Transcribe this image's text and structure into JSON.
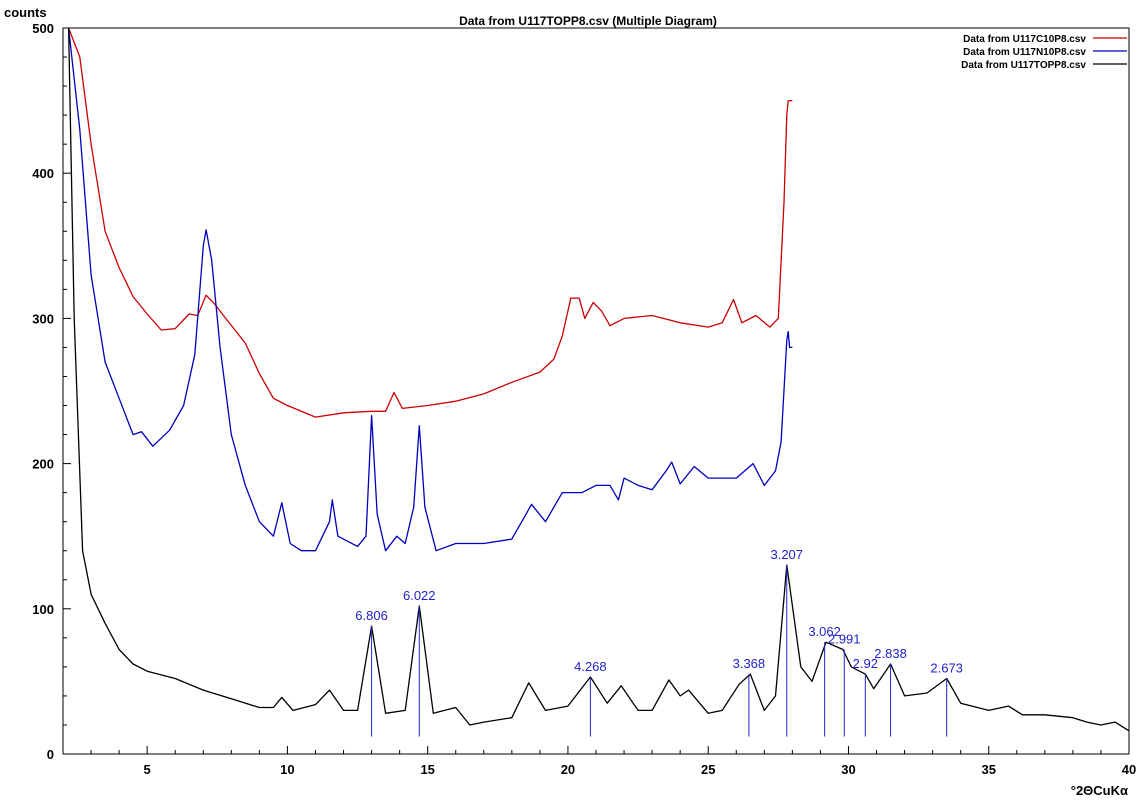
{
  "chart_data": {
    "type": "line",
    "title": "Data from U117TOPP8.csv (Multiple Diagram)",
    "ylabel": "counts",
    "xlabel": "°2ΘCuKα",
    "xlim": [
      2,
      40
    ],
    "ylim": [
      0,
      500
    ],
    "x_ticks": [
      5,
      10,
      15,
      20,
      25,
      30,
      35,
      40
    ],
    "y_ticks": [
      0,
      100,
      200,
      300,
      400,
      500
    ],
    "grid": false,
    "legend_position": "top-right",
    "series": [
      {
        "name": "Data from U117C10P8.csv",
        "color": "#cc0000",
        "points": [
          [
            2.2,
            500
          ],
          [
            2.6,
            480
          ],
          [
            3.0,
            420
          ],
          [
            3.5,
            360
          ],
          [
            4.0,
            335
          ],
          [
            4.5,
            315
          ],
          [
            5.0,
            303
          ],
          [
            5.5,
            292
          ],
          [
            6.0,
            293
          ],
          [
            6.5,
            303
          ],
          [
            6.8,
            302
          ],
          [
            7.1,
            316
          ],
          [
            7.4,
            310
          ],
          [
            7.8,
            300
          ],
          [
            8.5,
            283
          ],
          [
            9.0,
            262
          ],
          [
            9.5,
            245
          ],
          [
            10.0,
            240
          ],
          [
            11.0,
            232
          ],
          [
            12.0,
            235
          ],
          [
            13.0,
            236
          ],
          [
            13.5,
            236
          ],
          [
            13.8,
            249
          ],
          [
            14.1,
            238
          ],
          [
            15.0,
            240
          ],
          [
            16.0,
            243
          ],
          [
            17.0,
            248
          ],
          [
            18.0,
            256
          ],
          [
            19.0,
            263
          ],
          [
            19.5,
            272
          ],
          [
            19.8,
            288
          ],
          [
            20.1,
            314
          ],
          [
            20.4,
            314
          ],
          [
            20.6,
            300
          ],
          [
            20.9,
            311
          ],
          [
            21.2,
            305
          ],
          [
            21.5,
            295
          ],
          [
            22.0,
            300
          ],
          [
            23.0,
            302
          ],
          [
            24.0,
            297
          ],
          [
            25.0,
            294
          ],
          [
            25.5,
            297
          ],
          [
            25.9,
            313
          ],
          [
            26.2,
            297
          ],
          [
            26.7,
            302
          ],
          [
            27.2,
            294
          ],
          [
            27.5,
            300
          ],
          [
            27.7,
            380
          ],
          [
            27.8,
            440
          ],
          [
            27.85,
            450
          ],
          [
            28.0,
            450
          ]
        ]
      },
      {
        "name": "Data from U117N10P8.csv",
        "color": "#0000bb",
        "points": [
          [
            2.2,
            500
          ],
          [
            2.6,
            430
          ],
          [
            3.0,
            330
          ],
          [
            3.5,
            270
          ],
          [
            4.0,
            245
          ],
          [
            4.5,
            220
          ],
          [
            4.8,
            222
          ],
          [
            5.2,
            212
          ],
          [
            5.8,
            223
          ],
          [
            6.3,
            240
          ],
          [
            6.7,
            275
          ],
          [
            7.0,
            350
          ],
          [
            7.1,
            361
          ],
          [
            7.3,
            340
          ],
          [
            7.6,
            280
          ],
          [
            8.0,
            220
          ],
          [
            8.5,
            185
          ],
          [
            9.0,
            160
          ],
          [
            9.5,
            150
          ],
          [
            9.8,
            173
          ],
          [
            10.1,
            145
          ],
          [
            10.5,
            140
          ],
          [
            11.0,
            140
          ],
          [
            11.5,
            160
          ],
          [
            11.6,
            175
          ],
          [
            11.8,
            150
          ],
          [
            12.5,
            143
          ],
          [
            12.8,
            150
          ],
          [
            13.0,
            233
          ],
          [
            13.2,
            165
          ],
          [
            13.5,
            140
          ],
          [
            13.9,
            150
          ],
          [
            14.2,
            145
          ],
          [
            14.5,
            170
          ],
          [
            14.7,
            226
          ],
          [
            14.9,
            170
          ],
          [
            15.3,
            140
          ],
          [
            16.0,
            145
          ],
          [
            17.0,
            145
          ],
          [
            18.0,
            148
          ],
          [
            18.5,
            165
          ],
          [
            18.7,
            172
          ],
          [
            19.2,
            160
          ],
          [
            19.8,
            180
          ],
          [
            20.5,
            180
          ],
          [
            21.0,
            185
          ],
          [
            21.5,
            185
          ],
          [
            21.8,
            175
          ],
          [
            22.0,
            190
          ],
          [
            22.5,
            185
          ],
          [
            23.0,
            182
          ],
          [
            23.5,
            195
          ],
          [
            23.7,
            201
          ],
          [
            24.0,
            186
          ],
          [
            24.5,
            198
          ],
          [
            25.0,
            190
          ],
          [
            25.5,
            190
          ],
          [
            26.0,
            190
          ],
          [
            26.6,
            200
          ],
          [
            27.0,
            185
          ],
          [
            27.4,
            195
          ],
          [
            27.6,
            215
          ],
          [
            27.8,
            285
          ],
          [
            27.85,
            291
          ],
          [
            27.9,
            280
          ],
          [
            28.0,
            280
          ]
        ]
      },
      {
        "name": "Data from U117TOPP8.csv",
        "color": "#000000",
        "points": [
          [
            2.2,
            500
          ],
          [
            2.4,
            300
          ],
          [
            2.7,
            140
          ],
          [
            3.0,
            110
          ],
          [
            3.5,
            90
          ],
          [
            4.0,
            72
          ],
          [
            4.5,
            62
          ],
          [
            5.0,
            57
          ],
          [
            6.0,
            52
          ],
          [
            7.0,
            44
          ],
          [
            8.0,
            38
          ],
          [
            9.0,
            32
          ],
          [
            9.5,
            32
          ],
          [
            9.8,
            39
          ],
          [
            10.2,
            30
          ],
          [
            11.0,
            34
          ],
          [
            11.5,
            44
          ],
          [
            12.0,
            30
          ],
          [
            12.5,
            30
          ],
          [
            13.0,
            88
          ],
          [
            13.5,
            28
          ],
          [
            14.2,
            30
          ],
          [
            14.7,
            102
          ],
          [
            15.2,
            28
          ],
          [
            16.0,
            32
          ],
          [
            16.5,
            20
          ],
          [
            17.0,
            22
          ],
          [
            18.0,
            25
          ],
          [
            18.6,
            49
          ],
          [
            19.2,
            30
          ],
          [
            20.0,
            33
          ],
          [
            20.8,
            53
          ],
          [
            21.4,
            35
          ],
          [
            21.9,
            47
          ],
          [
            22.5,
            30
          ],
          [
            23.0,
            30
          ],
          [
            23.6,
            51
          ],
          [
            24.0,
            40
          ],
          [
            24.3,
            44
          ],
          [
            25.0,
            28
          ],
          [
            25.5,
            30
          ],
          [
            26.1,
            48
          ],
          [
            26.5,
            55
          ],
          [
            27.0,
            30
          ],
          [
            27.4,
            40
          ],
          [
            27.8,
            130
          ],
          [
            28.3,
            60
          ],
          [
            28.7,
            50
          ],
          [
            29.2,
            77
          ],
          [
            29.8,
            72
          ],
          [
            30.1,
            60
          ],
          [
            30.6,
            55
          ],
          [
            30.9,
            45
          ],
          [
            31.5,
            62
          ],
          [
            32.0,
            40
          ],
          [
            32.8,
            42
          ],
          [
            33.5,
            52
          ],
          [
            34.0,
            35
          ],
          [
            35.0,
            30
          ],
          [
            35.7,
            33
          ],
          [
            36.2,
            27
          ],
          [
            37.0,
            27
          ],
          [
            38.0,
            25
          ],
          [
            38.5,
            22
          ],
          [
            39.0,
            20
          ],
          [
            39.5,
            22
          ],
          [
            40.0,
            16
          ]
        ]
      }
    ],
    "peak_labels": [
      {
        "x": 13.0,
        "y": 88,
        "label": "6.806"
      },
      {
        "x": 14.7,
        "y": 102,
        "label": "6.022"
      },
      {
        "x": 20.8,
        "y": 53,
        "label": "4.268"
      },
      {
        "x": 26.45,
        "y": 55,
        "label": "3.368"
      },
      {
        "x": 27.8,
        "y": 130,
        "label": "3.207"
      },
      {
        "x": 29.15,
        "y": 77,
        "label": "3.062"
      },
      {
        "x": 29.85,
        "y": 72,
        "label": "2.991"
      },
      {
        "x": 30.6,
        "y": 55,
        "label": "2.92"
      },
      {
        "x": 31.5,
        "y": 62,
        "label": "2.838"
      },
      {
        "x": 33.5,
        "y": 52,
        "label": "2.673"
      }
    ]
  }
}
